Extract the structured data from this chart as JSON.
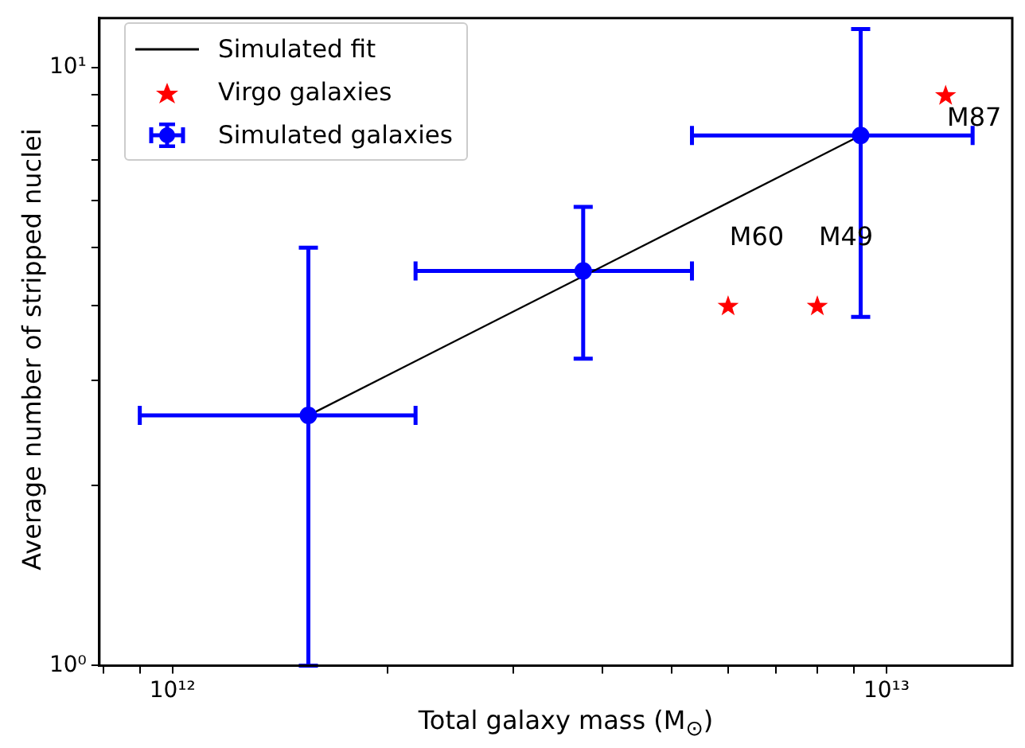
{
  "chart_data": {
    "type": "scatter",
    "xlabel": "Total galaxy mass (M$_{⊙}$)",
    "ylabel": "Average number of stripped nuclei",
    "log": "xy",
    "grid": false,
    "legend": "top left",
    "xlim": [
      790000000000.0,
      15000000000000.0
    ],
    "ylim": [
      1,
      12.1
    ],
    "xticks": [
      {
        "value": 800000000000.0,
        "label": null
      },
      {
        "value": 900000000000.0,
        "label": null
      },
      {
        "value": 1000000000000.0,
        "label": "10¹²"
      },
      {
        "value": 2000000000000.0,
        "label": null
      },
      {
        "value": 3000000000000.0,
        "label": null
      },
      {
        "value": 4000000000000.0,
        "label": null
      },
      {
        "value": 5000000000000.0,
        "label": null
      },
      {
        "value": 6000000000000.0,
        "label": null
      },
      {
        "value": 7000000000000.0,
        "label": null
      },
      {
        "value": 8000000000000.0,
        "label": null
      },
      {
        "value": 9000000000000.0,
        "label": null
      },
      {
        "value": 10000000000000.0,
        "label": "10¹³"
      }
    ],
    "yticks": [
      {
        "value": 1,
        "label": "10⁰"
      },
      {
        "value": 2,
        "label": null
      },
      {
        "value": 3,
        "label": null
      },
      {
        "value": 4,
        "label": null
      },
      {
        "value": 5,
        "label": null
      },
      {
        "value": 6,
        "label": null
      },
      {
        "value": 7,
        "label": null
      },
      {
        "value": 8,
        "label": null
      },
      {
        "value": 9,
        "label": null
      },
      {
        "value": 10,
        "label": "10¹"
      }
    ],
    "series": [
      {
        "name": "Simulated fit",
        "type": "line",
        "color": "#000000",
        "marker": "none",
        "x": [
          1550000000000.0,
          9200000000000.0
        ],
        "values": [
          2.62,
          7.7
        ]
      },
      {
        "name": "Virgo galaxies",
        "color": "#ff0000",
        "marker": "star",
        "x": [
          6000000000000.0,
          8000000000000.0,
          12100000000000.0
        ],
        "values": [
          4.0,
          4.0,
          9.0
        ]
      },
      {
        "name": "Simulated galaxies",
        "color": "#0000ff",
        "marker": "circle",
        "x": [
          1550000000000.0,
          3760000000000.0,
          9200000000000.0
        ],
        "values": [
          2.62,
          4.57,
          7.7
        ],
        "errors": [
          [
            1.0,
            5.0
          ],
          [
            3.26,
            5.85
          ],
          [
            3.83,
            11.6
          ]
        ],
        "xerrors": [
          [
            900000000000.0,
            2190000000000.0
          ],
          [
            2190000000000.0,
            5340000000000.0
          ],
          [
            5340000000000.0,
            13200000000000.0
          ]
        ]
      }
    ],
    "annotations": [
      {
        "text": "M60",
        "x": 6000000000000.0,
        "y": 4.0
      },
      {
        "text": "M49",
        "x": 8000000000000.0,
        "y": 4.0
      },
      {
        "text": "M87",
        "x": 12100000000000.0,
        "y": 9.0
      }
    ]
  }
}
